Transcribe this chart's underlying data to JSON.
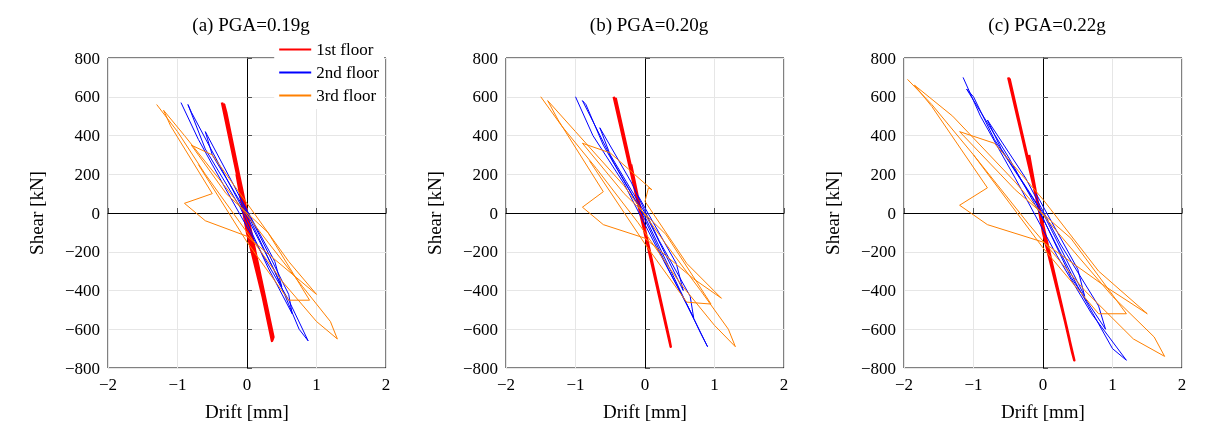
{
  "chart_data": [
    {
      "type": "line",
      "title": "(a) PGA=0.19g",
      "xlabel": "Drift [mm]",
      "ylabel": "Shear [kN]",
      "xlim": [
        -2,
        2
      ],
      "xticks": [
        -2,
        -1,
        0,
        1,
        2
      ],
      "ylim": [
        -800,
        800
      ],
      "yticks": [
        -800,
        -600,
        -400,
        -200,
        0,
        200,
        400,
        600,
        800
      ],
      "grid": true,
      "legend": "top right",
      "series": [
        {
          "name": "1st floor",
          "color": "#ff0000",
          "x": [
            -0.36,
            0.36,
            0.38,
            -0.33,
            -0.3,
            0.34,
            0,
            -0.15
          ],
          "values": [
            570,
            -660,
            -640,
            560,
            520,
            -600,
            -100,
            200
          ]
        },
        {
          "name": "2nd floor",
          "color": "#0000ff",
          "x": [
            -0.95,
            -0.7,
            -0.3,
            0.2,
            0.6,
            0.88,
            0.75,
            0.4,
            0,
            -0.4,
            -0.8,
            -0.85,
            -0.6,
            -0.1,
            0.3,
            0.65,
            0.6,
            0.2,
            -0.2,
            -0.6,
            -0.5,
            0,
            0.5,
            0.4,
            -0.1
          ],
          "values": [
            570,
            380,
            120,
            -200,
            -450,
            -660,
            -600,
            -300,
            -20,
            250,
            520,
            560,
            330,
            30,
            -280,
            -520,
            -420,
            -130,
            150,
            420,
            300,
            0,
            -380,
            -250,
            80
          ]
        },
        {
          "name": "3rd floor",
          "color": "#ff8000",
          "x": [
            -1.3,
            -1.0,
            -0.6,
            -0.1,
            0.5,
            1.0,
            1.3,
            1.2,
            0.8,
            0.3,
            -0.3,
            -0.9,
            -1.2,
            -1.1,
            -0.5,
            -0.9,
            -0.6,
            0,
            0.7,
            1.0,
            0.6,
            0,
            -0.5,
            -0.8,
            -0.3,
            0.3,
            0.9,
            0.6,
            0,
            -0.7
          ],
          "values": [
            560,
            420,
            200,
            -50,
            -350,
            -560,
            -650,
            -560,
            -380,
            -150,
            130,
            400,
            530,
            450,
            100,
            50,
            -40,
            -120,
            -330,
            -420,
            -250,
            50,
            300,
            350,
            100,
            -100,
            -450,
            -450,
            -150,
            250
          ]
        }
      ]
    },
    {
      "type": "line",
      "title": "(b) PGA=0.20g",
      "xlabel": "Drift [mm]",
      "ylabel": "Shear [kN]",
      "xlim": [
        -2,
        2
      ],
      "xticks": [
        -2,
        -1,
        0,
        1,
        2
      ],
      "ylim": [
        -800,
        800
      ],
      "yticks": [
        -800,
        -600,
        -400,
        -200,
        0,
        200,
        400,
        600,
        800
      ],
      "grid": true,
      "series": [
        {
          "color": "#ff0000",
          "x": [
            -0.45,
            0.37,
            0.35,
            -0.42,
            -0.38,
            0.3,
            0,
            -0.2
          ],
          "values": [
            600,
            -690,
            -650,
            590,
            520,
            -580,
            -100,
            250
          ]
        },
        {
          "color": "#0000ff",
          "x": [
            -1.0,
            -0.75,
            -0.3,
            0.2,
            0.6,
            0.9,
            0.8,
            0.4,
            0,
            -0.45,
            -0.9,
            -0.85,
            -0.6,
            -0.1,
            0.35,
            0.7,
            0.65,
            0.2,
            -0.2,
            -0.65,
            -0.5,
            0,
            0.55,
            0.45,
            -0.1
          ],
          "values": [
            600,
            400,
            150,
            -200,
            -470,
            -690,
            -620,
            -320,
            -20,
            260,
            580,
            560,
            350,
            40,
            -300,
            -540,
            -430,
            -140,
            160,
            440,
            300,
            0,
            -400,
            -260,
            90
          ]
        },
        {
          "color": "#ff8000",
          "x": [
            -1.5,
            -1.2,
            -0.7,
            -0.1,
            0.5,
            1.0,
            1.3,
            1.2,
            0.8,
            0.3,
            -0.3,
            -1.0,
            -1.4,
            -1.25,
            -0.6,
            -0.9,
            -0.6,
            0,
            0.7,
            1.1,
            0.6,
            0,
            0.05,
            0.1,
            -0.5,
            -0.9,
            -0.3,
            0.3,
            0.95,
            0.6,
            0,
            -0.8
          ],
          "values": [
            600,
            450,
            230,
            -50,
            -360,
            -580,
            -690,
            -600,
            -400,
            -160,
            140,
            420,
            580,
            480,
            110,
            30,
            -60,
            -130,
            -340,
            -440,
            -260,
            60,
            130,
            120,
            310,
            360,
            100,
            -110,
            -470,
            -460,
            -160,
            270
          ]
        }
      ]
    },
    {
      "type": "line",
      "title": "(c) PGA=0.22g",
      "xlabel": "Drift [mm]",
      "ylabel": "Shear [kN]",
      "xlim": [
        -2,
        2
      ],
      "xticks": [
        -2,
        -1,
        0,
        1,
        2
      ],
      "ylim": [
        -800,
        800
      ],
      "yticks": [
        -800,
        -600,
        -400,
        -200,
        0,
        200,
        400,
        600,
        800
      ],
      "grid": true,
      "series": [
        {
          "color": "#ff0000",
          "x": [
            -0.5,
            0.45,
            0.42,
            -0.48,
            -0.4,
            0.38,
            0,
            -0.2
          ],
          "values": [
            700,
            -760,
            -720,
            690,
            560,
            -650,
            -100,
            300
          ]
        },
        {
          "color": "#0000ff",
          "x": [
            -1.15,
            -0.9,
            -0.4,
            0.2,
            0.7,
            1.2,
            1.0,
            0.5,
            0,
            -0.5,
            -1.1,
            -1.0,
            -0.7,
            -0.1,
            0.4,
            0.9,
            0.8,
            0.25,
            -0.25,
            -0.8,
            -0.6,
            0,
            0.6,
            0.5,
            -0.1
          ],
          "values": [
            700,
            500,
            180,
            -220,
            -520,
            -760,
            -700,
            -380,
            -30,
            290,
            640,
            600,
            380,
            50,
            -330,
            -600,
            -480,
            -160,
            180,
            480,
            330,
            0,
            -430,
            -290,
            100
          ]
        },
        {
          "color": "#ff8000",
          "x": [
            -1.95,
            -1.6,
            -1.0,
            -0.2,
            0.6,
            1.3,
            1.75,
            1.6,
            1.0,
            0.4,
            -0.4,
            -1.3,
            -1.85,
            -1.6,
            -0.8,
            -1.2,
            -0.8,
            0,
            0.9,
            1.5,
            0.8,
            0,
            -0.7,
            -1.2,
            -0.4,
            0.4,
            1.2,
            0.8,
            0,
            -1.0
          ],
          "values": [
            690,
            560,
            300,
            -60,
            -400,
            -650,
            -740,
            -640,
            -430,
            -180,
            160,
            500,
            660,
            550,
            130,
            40,
            -60,
            -150,
            -380,
            -520,
            -300,
            70,
            360,
            420,
            120,
            -130,
            -520,
            -520,
            -180,
            300
          ]
        }
      ]
    }
  ]
}
